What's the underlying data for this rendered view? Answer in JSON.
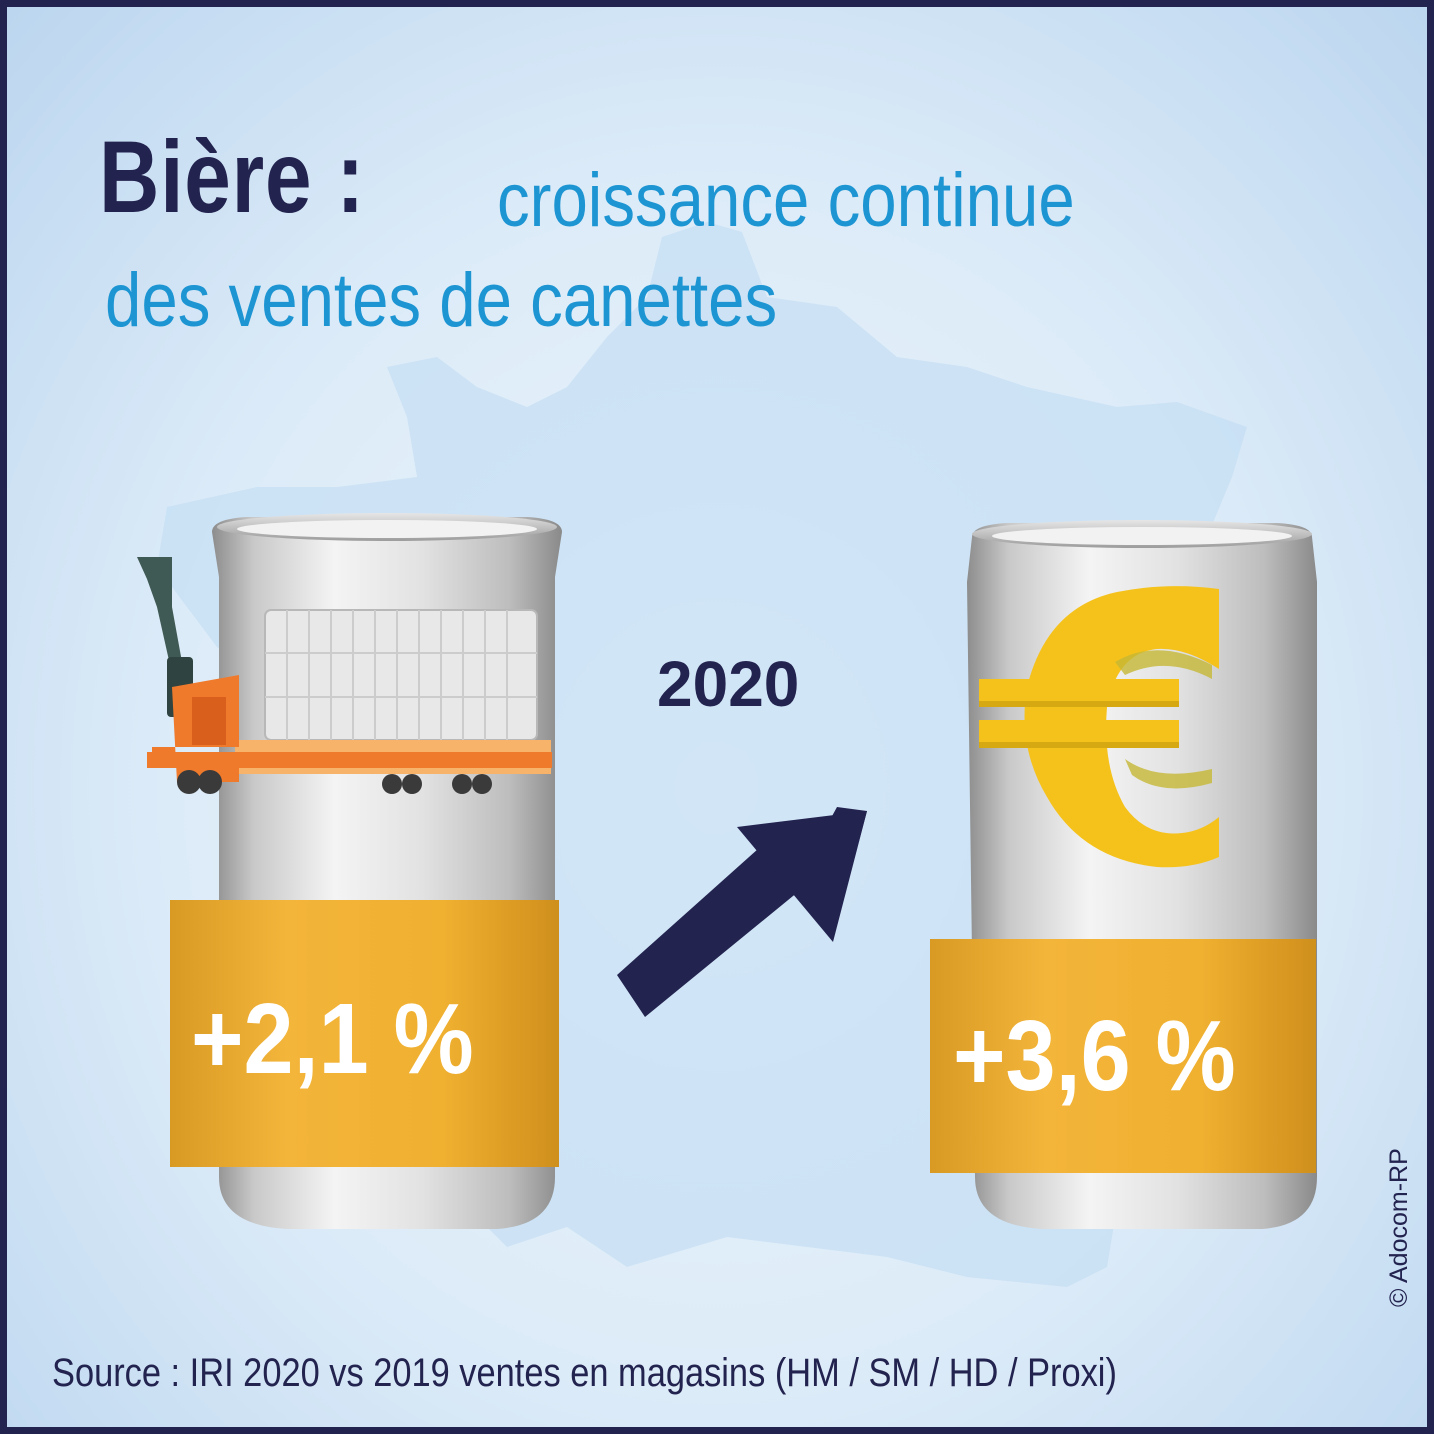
{
  "title": {
    "bold": "Bière :",
    "line1": "croissance continue",
    "line2": "des ventes de canettes"
  },
  "year": "2020",
  "cans": [
    {
      "label": "+2,1 %",
      "icon": "pallet-truck-icon"
    },
    {
      "label": "+3,6 %",
      "icon": "euro-icon"
    }
  ],
  "source": "Source : IRI 2020 vs 2019 ventes en magasins (HM / SM / HD / Proxi)",
  "credit": "© Adocom-RP",
  "colors": {
    "navy": "#23234f",
    "blue": "#1d95d3",
    "gold": "#f0b333",
    "euro": "#f5c21c",
    "orange": "#f07a2c"
  }
}
